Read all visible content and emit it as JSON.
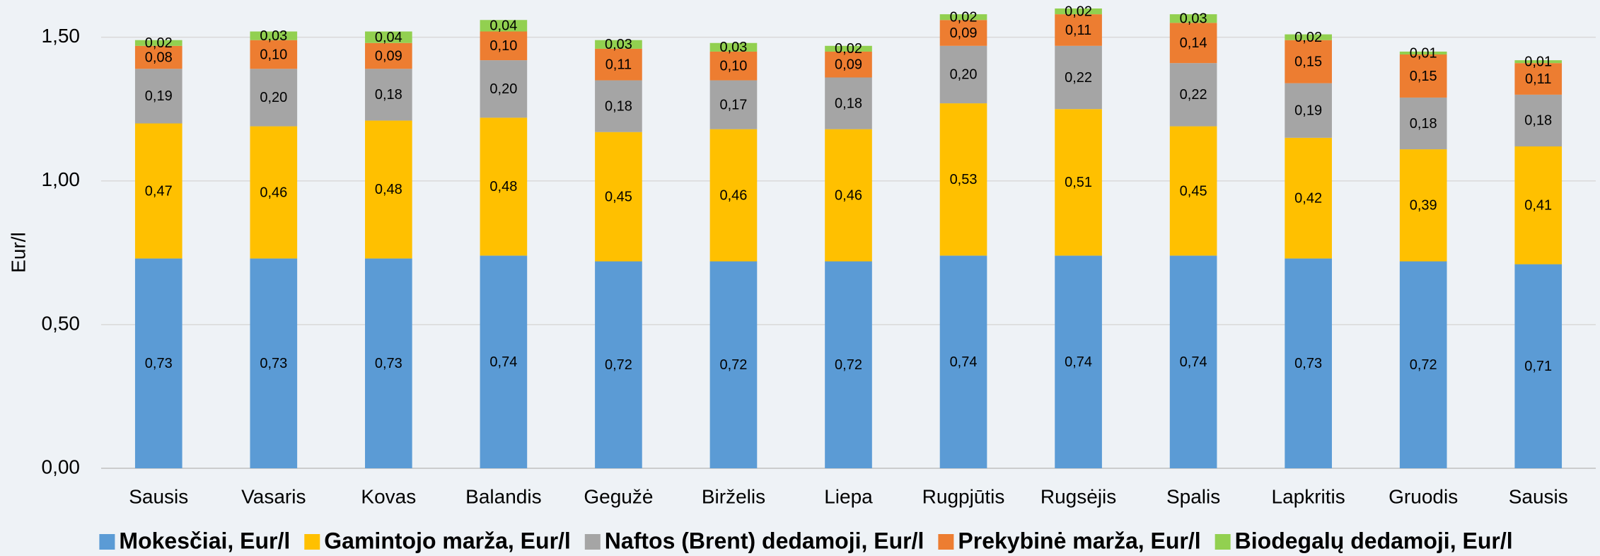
{
  "chart_data": {
    "type": "stacked_bar",
    "y_label": "Eur/l",
    "categories": [
      "Sausis",
      "Vasaris",
      "Kovas",
      "Balandis",
      "Gegužė",
      "Birželis",
      "Liepa",
      "Rugpjūtis",
      "Rugsėjis",
      "Spalis",
      "Lapkritis",
      "Gruodis",
      "Sausis"
    ],
    "series": [
      {
        "name": "Mokesčiai, Eur/l",
        "color": "#5b9bd5",
        "values": [
          0.73,
          0.73,
          0.73,
          0.74,
          0.72,
          0.72,
          0.72,
          0.74,
          0.74,
          0.74,
          0.73,
          0.72,
          0.71
        ],
        "value_labels": [
          "0,73",
          "0,73",
          "0,73",
          "0,74",
          "0,72",
          "0,72",
          "0,72",
          "0,74",
          "0,74",
          "0,74",
          "0,73",
          "0,72",
          "0,71"
        ]
      },
      {
        "name": "Gamintojo marža, Eur/l",
        "color": "#ffc000",
        "values": [
          0.47,
          0.46,
          0.48,
          0.48,
          0.45,
          0.46,
          0.46,
          0.53,
          0.51,
          0.45,
          0.42,
          0.39,
          0.41
        ],
        "value_labels": [
          "0,47",
          "0,46",
          "0,48",
          "0,48",
          "0,45",
          "0,46",
          "0,46",
          "0,53",
          "0,51",
          "0,45",
          "0,42",
          "0,39",
          "0,41"
        ]
      },
      {
        "name": "Naftos (Brent) dedamoji, Eur/l",
        "color": "#a5a5a5",
        "values": [
          0.19,
          0.2,
          0.18,
          0.2,
          0.18,
          0.17,
          0.18,
          0.2,
          0.22,
          0.22,
          0.19,
          0.18,
          0.18
        ],
        "value_labels": [
          "0,19",
          "0,20",
          "0,18",
          "0,20",
          "0,18",
          "0,17",
          "0,18",
          "0,20",
          "0,22",
          "0,22",
          "0,19",
          "0,18",
          "0,18"
        ]
      },
      {
        "name": "Prekybinė marža, Eur/l",
        "color": "#ed7d31",
        "values": [
          0.08,
          0.1,
          0.09,
          0.1,
          0.11,
          0.1,
          0.09,
          0.09,
          0.11,
          0.14,
          0.15,
          0.15,
          0.11
        ],
        "value_labels": [
          "0,08",
          "0,10",
          "0,09",
          "0,10",
          "0,11",
          "0,10",
          "0,09",
          "0,09",
          "0,11",
          "0,14",
          "0,15",
          "0,15",
          "0,11"
        ]
      },
      {
        "name": "Biodegalų dedamoji, Eur/l",
        "color": "#92d050",
        "values": [
          0.02,
          0.03,
          0.04,
          0.04,
          0.03,
          0.03,
          0.02,
          0.02,
          0.02,
          0.03,
          0.02,
          0.01,
          0.01
        ],
        "value_labels": [
          "0,02",
          "0,03",
          "0,04",
          "0,04",
          "0,03",
          "0,03",
          "0,02",
          "0,02",
          "0,02",
          "0,03",
          "0,02",
          "0,01",
          "0,01"
        ]
      }
    ],
    "ylim": [
      0,
      1.6
    ],
    "yticks": [
      {
        "value": 0,
        "label": "0,00"
      },
      {
        "value": 0.5,
        "label": "0,50"
      },
      {
        "value": 1,
        "label": "1,00"
      },
      {
        "value": 1.5,
        "label": "1,50"
      }
    ],
    "grid": true,
    "legend": "bottom"
  }
}
